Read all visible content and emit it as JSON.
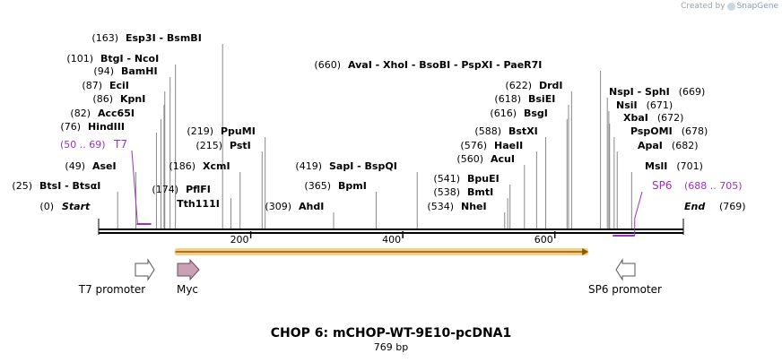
{
  "watermark": {
    "prefix": "Created by",
    "brand": "SnapGene"
  },
  "title": "CHOP 6: mCHOP-WT-9E10-pcDNA1",
  "subtitle": "769 bp",
  "sequence_length": 769,
  "ticks": [
    "200",
    "400",
    "600"
  ],
  "colors": {
    "primer": "#9b30c8",
    "orf": "#f5a623",
    "orf_line": "#8a5a00",
    "myc": "#c9a0b4",
    "line": "#000000",
    "leader": "#888888"
  },
  "ends": {
    "start": {
      "pos": "(0)",
      "name": "Start"
    },
    "end": {
      "name": "End",
      "pos": "(769)"
    }
  },
  "sites": [
    {
      "pos": "(25)",
      "names": [
        "BtsI",
        "BtsαI"
      ]
    },
    {
      "pos": "(49)",
      "names": [
        "AseI"
      ]
    },
    {
      "pos": "(76)",
      "names": [
        "HindIII"
      ]
    },
    {
      "pos": "(82)",
      "names": [
        "Acc65I"
      ]
    },
    {
      "pos": "(86)",
      "names": [
        "KpnI"
      ]
    },
    {
      "pos": "(87)",
      "names": [
        "EciI"
      ]
    },
    {
      "pos": "(94)",
      "names": [
        "BamHI"
      ]
    },
    {
      "pos": "(101)",
      "names": [
        "BtgI",
        "NcoI"
      ]
    },
    {
      "pos": "(163)",
      "names": [
        "Esp3I",
        "BsmBI"
      ]
    },
    {
      "pos": "(174)",
      "names": [
        "PflFI",
        "Tth111I"
      ]
    },
    {
      "pos": "(186)",
      "names": [
        "XcmI"
      ]
    },
    {
      "pos": "(215)",
      "names": [
        "PstI"
      ]
    },
    {
      "pos": "(219)",
      "names": [
        "PpuMI"
      ]
    },
    {
      "pos": "(309)",
      "names": [
        "AhdI"
      ]
    },
    {
      "pos": "(365)",
      "names": [
        "BpmI"
      ]
    },
    {
      "pos": "(419)",
      "names": [
        "SapI",
        "BspQI"
      ]
    },
    {
      "pos": "(534)",
      "names": [
        "NheI"
      ]
    },
    {
      "pos": "(538)",
      "names": [
        "BmtI"
      ]
    },
    {
      "pos": "(541)",
      "names": [
        "BpuEI"
      ]
    },
    {
      "pos": "(560)",
      "names": [
        "AcuI"
      ]
    },
    {
      "pos": "(576)",
      "names": [
        "HaeII"
      ]
    },
    {
      "pos": "(588)",
      "names": [
        "BstXI"
      ]
    },
    {
      "pos": "(616)",
      "names": [
        "BsgI"
      ]
    },
    {
      "pos": "(618)",
      "names": [
        "BsiEI"
      ]
    },
    {
      "pos": "(622)",
      "names": [
        "DrdI"
      ]
    },
    {
      "pos": "(660)",
      "names": [
        "AvaI",
        "XhoI",
        "BsoBI",
        "PspXI",
        "PaeR7I"
      ]
    },
    {
      "pos": "(669)",
      "names": [
        "NspI",
        "SphI"
      ]
    },
    {
      "pos": "(671)",
      "names": [
        "NsiI"
      ]
    },
    {
      "pos": "(672)",
      "names": [
        "XbaI"
      ]
    },
    {
      "pos": "(678)",
      "names": [
        "PspOMI"
      ]
    },
    {
      "pos": "(682)",
      "names": [
        "ApaI"
      ]
    },
    {
      "pos": "(701)",
      "names": [
        "MslI"
      ]
    }
  ],
  "primers": [
    {
      "name": "T7",
      "range": "(50 .. 69)",
      "start": 50,
      "end": 69,
      "strand": "forward"
    },
    {
      "name": "SP6",
      "range": "(688 .. 705)",
      "start": 688,
      "end": 705,
      "strand": "reverse"
    }
  ],
  "orf": {
    "start": 101,
    "end": 643
  },
  "features": [
    {
      "name": "T7 promoter",
      "direction": "right",
      "kind": "promoter"
    },
    {
      "name": "Myc",
      "direction": "right",
      "kind": "tag"
    },
    {
      "name": "SP6 promoter",
      "direction": "left",
      "kind": "promoter"
    }
  ]
}
